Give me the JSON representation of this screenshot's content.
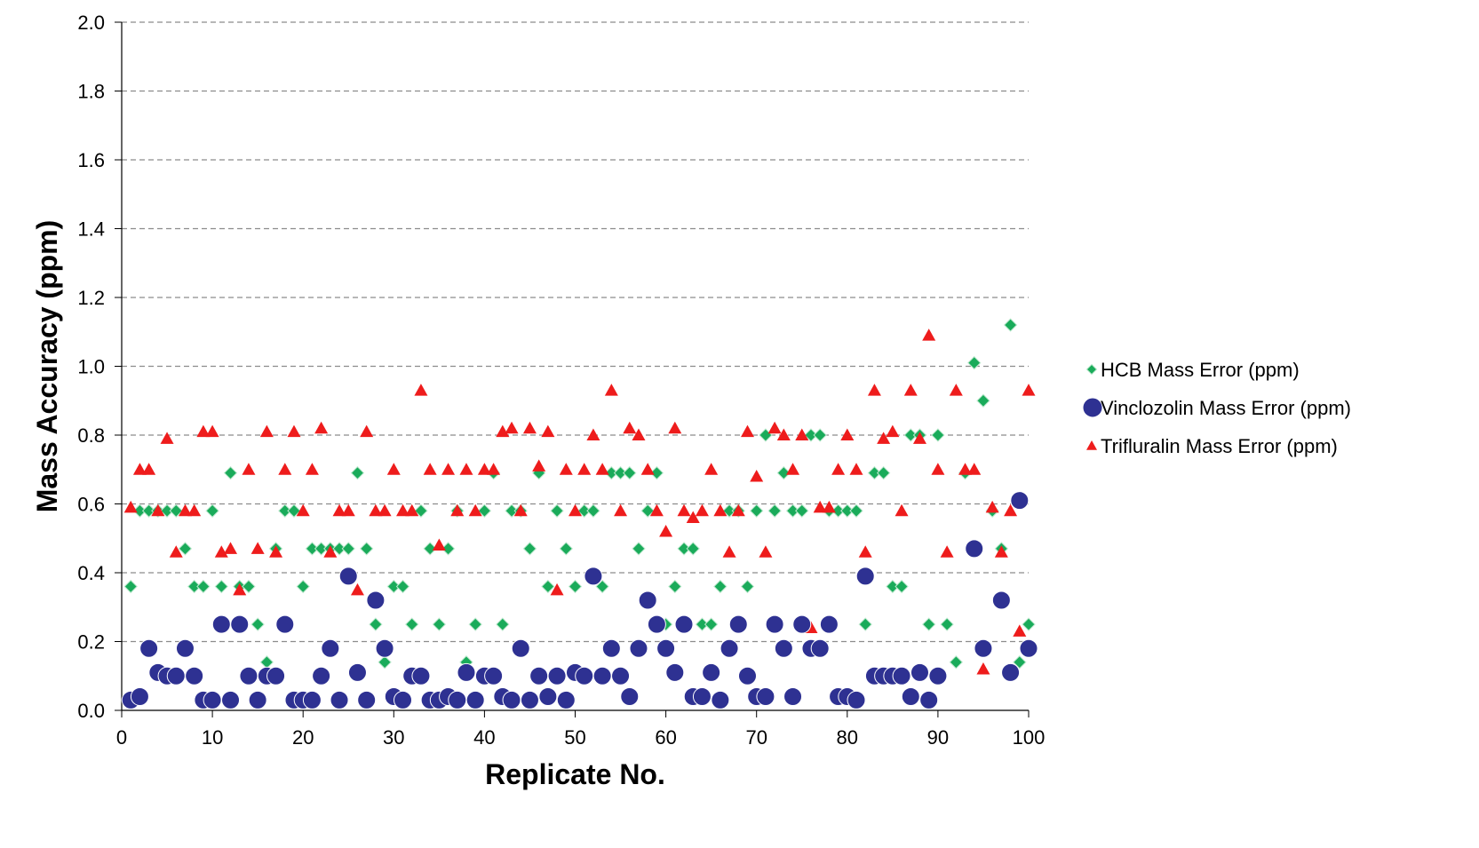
{
  "chart_data": {
    "type": "scatter",
    "title": "",
    "xlabel": "Replicate No.",
    "ylabel": "Mass Accuracy (ppm)",
    "xlim": [
      0,
      100
    ],
    "ylim": [
      0,
      2.0
    ],
    "x_ticks": [
      0,
      10,
      20,
      30,
      40,
      50,
      60,
      70,
      80,
      90,
      100
    ],
    "y_ticks": [
      "0.0",
      "0.2",
      "0.4",
      "0.6",
      "0.8",
      "1.0",
      "1.2",
      "1.4",
      "1.6",
      "1.8",
      "2.0"
    ],
    "grid": "horizontal dashed",
    "legend_position": "right",
    "series": [
      {
        "name": "HCB Mass Error (ppm)",
        "marker": "diamond",
        "color": "#1aab5a",
        "x": [
          1,
          2,
          3,
          4,
          5,
          6,
          7,
          8,
          9,
          10,
          11,
          12,
          13,
          14,
          15,
          16,
          17,
          18,
          19,
          20,
          21,
          22,
          23,
          24,
          25,
          26,
          27,
          28,
          29,
          30,
          31,
          32,
          33,
          34,
          35,
          36,
          37,
          38,
          39,
          40,
          41,
          42,
          43,
          44,
          45,
          46,
          47,
          48,
          49,
          50,
          51,
          52,
          53,
          54,
          55,
          56,
          57,
          58,
          59,
          60,
          61,
          62,
          63,
          64,
          65,
          66,
          67,
          68,
          69,
          70,
          71,
          72,
          73,
          74,
          75,
          76,
          77,
          78,
          79,
          80,
          81,
          82,
          83,
          84,
          85,
          86,
          87,
          88,
          89,
          90,
          91,
          92,
          93,
          94,
          95,
          96,
          97,
          98,
          99,
          100
        ],
        "y": [
          0.36,
          0.58,
          0.58,
          0.58,
          0.58,
          0.58,
          0.47,
          0.36,
          0.36,
          0.58,
          0.36,
          0.69,
          0.36,
          0.36,
          0.25,
          0.14,
          0.47,
          0.58,
          0.58,
          0.36,
          0.47,
          0.47,
          0.47,
          0.47,
          0.47,
          0.69,
          0.47,
          0.25,
          0.14,
          0.36,
          0.36,
          0.25,
          0.58,
          0.47,
          0.25,
          0.47,
          0.58,
          0.14,
          0.25,
          0.58,
          0.69,
          0.25,
          0.58,
          0.58,
          0.47,
          0.69,
          0.36,
          0.58,
          0.47,
          0.36,
          0.58,
          0.58,
          0.36,
          0.69,
          0.69,
          0.69,
          0.47,
          0.58,
          0.69,
          0.25,
          0.36,
          0.47,
          0.47,
          0.25,
          0.25,
          0.36,
          0.58,
          0.58,
          0.36,
          0.58,
          0.8,
          0.58,
          0.69,
          0.58,
          0.58,
          0.8,
          0.8,
          0.58,
          0.58,
          0.58,
          0.58,
          0.25,
          0.69,
          0.69,
          0.36,
          0.36,
          0.8,
          0.8,
          0.25,
          0.8,
          0.25,
          0.14,
          0.69,
          1.01,
          0.9,
          0.58,
          0.47,
          1.12,
          0.14,
          0.25
        ]
      },
      {
        "name": "Vinclozolin Mass Error (ppm)",
        "marker": "circle",
        "color": "#2e3192",
        "x": [
          1,
          2,
          3,
          4,
          5,
          6,
          7,
          8,
          9,
          10,
          11,
          12,
          13,
          14,
          15,
          16,
          17,
          18,
          19,
          20,
          21,
          22,
          23,
          24,
          25,
          26,
          27,
          28,
          29,
          30,
          31,
          32,
          33,
          34,
          35,
          36,
          37,
          38,
          39,
          40,
          41,
          42,
          43,
          44,
          45,
          46,
          47,
          48,
          49,
          50,
          51,
          52,
          53,
          54,
          55,
          56,
          57,
          58,
          59,
          60,
          61,
          62,
          63,
          64,
          65,
          66,
          67,
          68,
          69,
          70,
          71,
          72,
          73,
          74,
          75,
          76,
          77,
          78,
          79,
          80,
          81,
          82,
          83,
          84,
          85,
          86,
          87,
          88,
          89,
          90,
          94,
          95,
          97,
          98,
          99,
          100
        ],
        "y": [
          0.03,
          0.04,
          0.18,
          0.11,
          0.1,
          0.1,
          0.18,
          0.1,
          0.03,
          0.03,
          0.25,
          0.03,
          0.25,
          0.1,
          0.03,
          0.1,
          0.1,
          0.25,
          0.03,
          0.03,
          0.03,
          0.1,
          0.18,
          0.03,
          0.39,
          0.11,
          0.03,
          0.32,
          0.18,
          0.04,
          0.03,
          0.1,
          0.1,
          0.03,
          0.03,
          0.04,
          0.03,
          0.11,
          0.03,
          0.1,
          0.1,
          0.04,
          0.03,
          0.18,
          0.03,
          0.1,
          0.04,
          0.1,
          0.03,
          0.11,
          0.1,
          0.39,
          0.1,
          0.18,
          0.1,
          0.04,
          0.18,
          0.32,
          0.25,
          0.18,
          0.11,
          0.25,
          0.04,
          0.04,
          0.11,
          0.03,
          0.18,
          0.25,
          0.1,
          0.04,
          0.04,
          0.25,
          0.18,
          0.04,
          0.25,
          0.18,
          0.18,
          0.25,
          0.04,
          0.04,
          0.03,
          0.39,
          0.1,
          0.1,
          0.1,
          0.1,
          0.04,
          0.11,
          0.03,
          0.1,
          0.47,
          0.18,
          0.32,
          0.11,
          0.61,
          0.18
        ]
      },
      {
        "name": "Trifluralin Mass Error (ppm)",
        "marker": "triangle",
        "color": "#ee1c1c",
        "x": [
          1,
          2,
          3,
          4,
          5,
          6,
          7,
          8,
          9,
          10,
          11,
          12,
          13,
          14,
          15,
          16,
          17,
          18,
          19,
          20,
          21,
          22,
          23,
          24,
          25,
          26,
          27,
          28,
          29,
          30,
          31,
          32,
          33,
          34,
          35,
          36,
          37,
          38,
          39,
          40,
          41,
          42,
          43,
          44,
          45,
          46,
          47,
          48,
          49,
          50,
          51,
          52,
          53,
          54,
          55,
          56,
          57,
          58,
          59,
          60,
          61,
          62,
          63,
          64,
          65,
          66,
          67,
          68,
          69,
          70,
          71,
          72,
          73,
          74,
          75,
          76,
          77,
          78,
          79,
          80,
          81,
          82,
          83,
          84,
          85,
          86,
          87,
          88,
          89,
          90,
          91,
          92,
          93,
          94,
          95,
          96,
          97,
          98,
          99,
          100
        ],
        "y": [
          0.59,
          0.7,
          0.7,
          0.58,
          0.79,
          0.46,
          0.58,
          0.58,
          0.81,
          0.81,
          0.46,
          0.47,
          0.35,
          0.7,
          0.47,
          0.81,
          0.46,
          0.7,
          0.81,
          0.58,
          0.7,
          0.82,
          0.46,
          0.58,
          0.58,
          0.35,
          0.81,
          0.58,
          0.58,
          0.7,
          0.58,
          0.58,
          0.93,
          0.7,
          0.48,
          0.7,
          0.58,
          0.7,
          0.58,
          0.7,
          0.7,
          0.81,
          0.82,
          0.58,
          0.82,
          0.71,
          0.81,
          0.35,
          0.7,
          0.58,
          0.7,
          0.8,
          0.7,
          0.93,
          0.58,
          0.82,
          0.8,
          0.7,
          0.58,
          0.52,
          0.82,
          0.58,
          0.56,
          0.58,
          0.7,
          0.58,
          0.46,
          0.58,
          0.81,
          0.68,
          0.46,
          0.82,
          0.8,
          0.7,
          0.8,
          0.24,
          0.59,
          0.59,
          0.7,
          0.8,
          0.7,
          0.46,
          0.93,
          0.79,
          0.81,
          0.58,
          0.93,
          0.79,
          1.09,
          0.7,
          0.46,
          0.93,
          0.7,
          0.7,
          0.12,
          0.59,
          0.46,
          0.58,
          0.23,
          0.93
        ]
      }
    ]
  }
}
